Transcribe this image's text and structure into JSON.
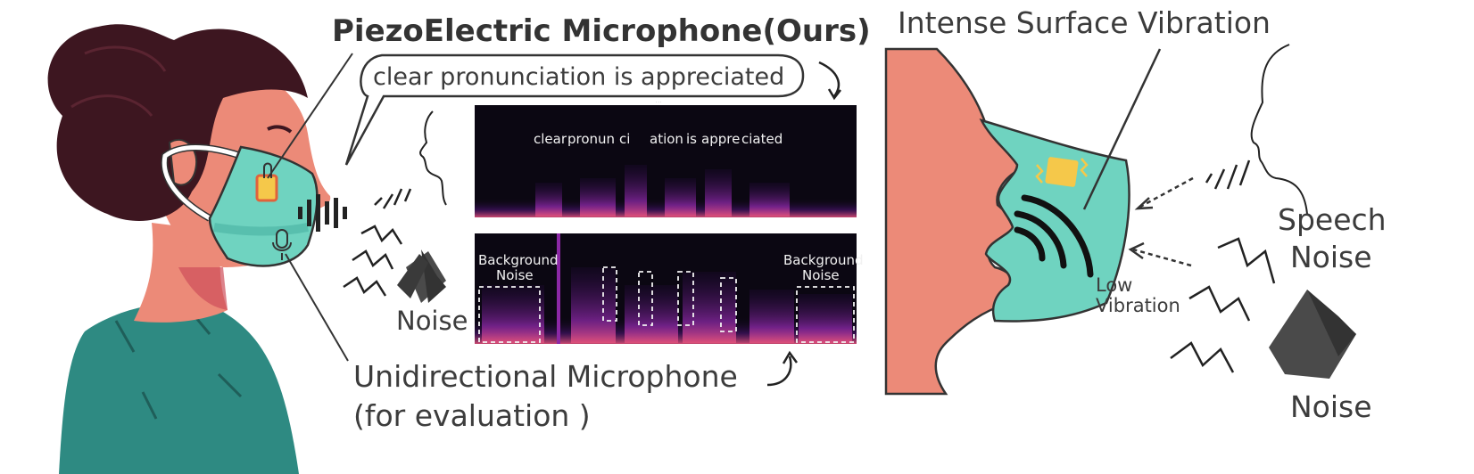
{
  "colors": {
    "hair": "#3d1620",
    "skin": "#ec8a78",
    "skin_shadow": "#cf4e5a",
    "shirt": "#2e8a82",
    "mask": "#6fd3c0",
    "sensor": "#f5c84a",
    "sensor_border": "#e0623b",
    "spectrogram_bg": "#0b0712",
    "spectrogram_energy": "#c23aa8",
    "line": "#333333",
    "speaker": "#4a4a4a"
  },
  "left": {
    "piezo_title": "PiezoElectric Microphone(Ours)",
    "speech_bubble": "clear pronunciation is appreciated",
    "noise_label": "Noise",
    "unidirectional_line1": "Unidirectional Microphone",
    "unidirectional_line2": "(for evaluation )"
  },
  "spectrogram_top": {
    "words": [
      "clear",
      "pronun",
      "ci",
      "ation",
      "is",
      "appre",
      "ciated"
    ]
  },
  "spectrogram_bottom": {
    "background_noise_left": [
      "Background",
      "Noise"
    ],
    "background_noise_right": [
      "Background",
      "Noise"
    ]
  },
  "right": {
    "title": "Intense Surface Vibration",
    "low_vibration_line1": "Low",
    "low_vibration_line2": "Vibration",
    "speech_noise_line1": "Speech",
    "speech_noise_line2": "Noise",
    "noise_label": "Noise"
  },
  "icons": {
    "speaker_left": "speaker-icon",
    "speaker_right": "speaker-icon",
    "mic": "microphone-icon",
    "person_left": "person-silhouette-icon",
    "person_right": "person-silhouette-icon"
  }
}
